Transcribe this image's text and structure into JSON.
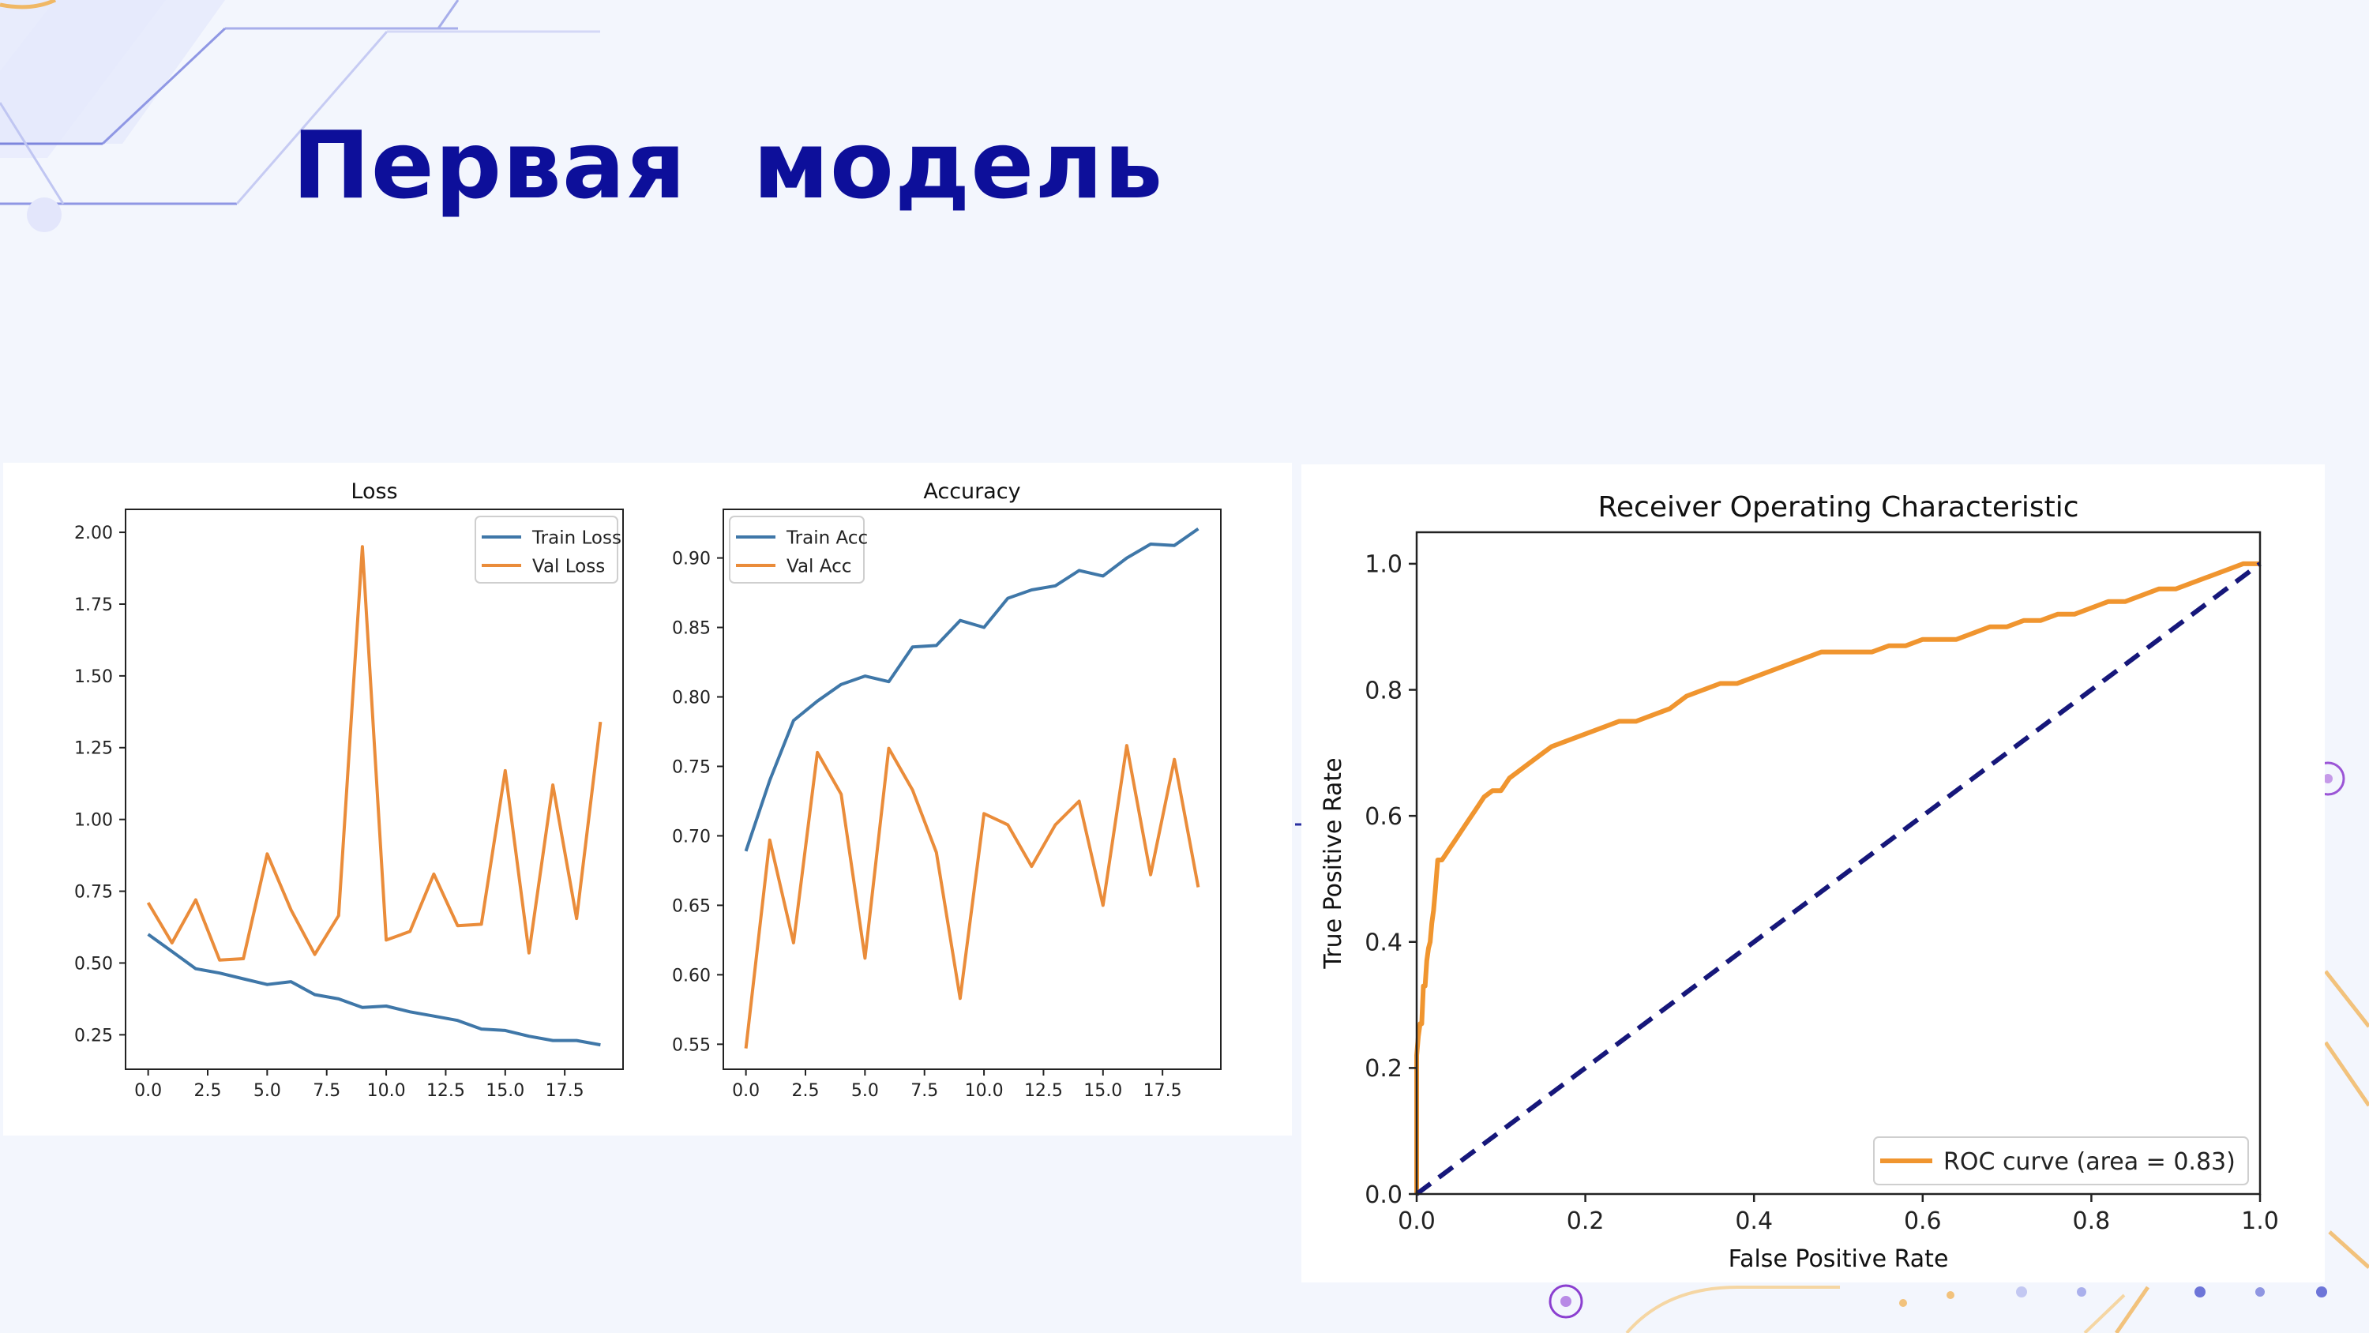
{
  "slide": {
    "title": "Первая  модель"
  },
  "colors": {
    "title": "#0d0f9a",
    "train": "#3f77a8",
    "val": "#ea8c3a",
    "roc": "#f0952f",
    "diag": "#16177a"
  },
  "chart_data": [
    {
      "type": "line",
      "title": "Loss",
      "xlabel": "",
      "ylabel": "",
      "xlim": [
        -0.95,
        19.95
      ],
      "ylim": [
        0.13,
        2.08
      ],
      "xticks": [
        0.0,
        2.5,
        5.0,
        7.5,
        10.0,
        12.5,
        15.0,
        17.5
      ],
      "xtick_labels": [
        "0.0",
        "2.5",
        "5.0",
        "7.5",
        "10.0",
        "12.5",
        "15.0",
        "17.5"
      ],
      "yticks": [
        0.25,
        0.5,
        0.75,
        1.0,
        1.25,
        1.5,
        1.75,
        2.0
      ],
      "ytick_labels": [
        "0.25",
        "0.50",
        "0.75",
        "1.00",
        "1.25",
        "1.50",
        "1.75",
        "2.00"
      ],
      "legend": "upper-right",
      "grid": false,
      "x": [
        0,
        1,
        2,
        3,
        4,
        5,
        6,
        7,
        8,
        9,
        10,
        11,
        12,
        13,
        14,
        15,
        16,
        17,
        18,
        19
      ],
      "series": [
        {
          "name": "Train Loss",
          "color": "#3f77a8",
          "values": [
            0.6,
            0.54,
            0.48,
            0.465,
            0.445,
            0.425,
            0.435,
            0.39,
            0.375,
            0.345,
            0.35,
            0.33,
            0.315,
            0.3,
            0.27,
            0.265,
            0.245,
            0.23,
            0.23,
            0.215
          ]
        },
        {
          "name": "Val Loss",
          "color": "#ea8c3a",
          "values": [
            0.71,
            0.57,
            0.72,
            0.51,
            0.515,
            0.88,
            0.685,
            0.53,
            0.665,
            1.95,
            0.58,
            0.61,
            0.81,
            0.63,
            0.635,
            1.17,
            0.535,
            1.12,
            0.655,
            1.34
          ]
        }
      ]
    },
    {
      "type": "line",
      "title": "Accuracy",
      "xlabel": "",
      "ylabel": "",
      "xlim": [
        -0.95,
        19.95
      ],
      "ylim": [
        0.532,
        0.935
      ],
      "xticks": [
        0.0,
        2.5,
        5.0,
        7.5,
        10.0,
        12.5,
        15.0,
        17.5
      ],
      "xtick_labels": [
        "0.0",
        "2.5",
        "5.0",
        "7.5",
        "10.0",
        "12.5",
        "15.0",
        "17.5"
      ],
      "yticks": [
        0.55,
        0.6,
        0.65,
        0.7,
        0.75,
        0.8,
        0.85,
        0.9
      ],
      "ytick_labels": [
        "0.55",
        "0.60",
        "0.65",
        "0.70",
        "0.75",
        "0.80",
        "0.85",
        "0.90"
      ],
      "legend": "upper-left",
      "grid": false,
      "x": [
        0,
        1,
        2,
        3,
        4,
        5,
        6,
        7,
        8,
        9,
        10,
        11,
        12,
        13,
        14,
        15,
        16,
        17,
        18,
        19
      ],
      "series": [
        {
          "name": "Train Acc",
          "color": "#3f77a8",
          "values": [
            0.689,
            0.74,
            0.783,
            0.797,
            0.809,
            0.815,
            0.811,
            0.836,
            0.837,
            0.855,
            0.85,
            0.871,
            0.877,
            0.88,
            0.891,
            0.887,
            0.9,
            0.91,
            0.909,
            0.921
          ]
        },
        {
          "name": "Val Acc",
          "color": "#ea8c3a",
          "values": [
            0.547,
            0.697,
            0.623,
            0.76,
            0.73,
            0.612,
            0.763,
            0.733,
            0.688,
            0.583,
            0.716,
            0.708,
            0.678,
            0.708,
            0.725,
            0.65,
            0.765,
            0.672,
            0.755,
            0.663
          ]
        }
      ]
    },
    {
      "type": "line",
      "title": "Receiver Operating Characteristic",
      "xlabel": "False Positive Rate",
      "ylabel": "True Positive Rate",
      "xlim": [
        0.0,
        1.0
      ],
      "ylim": [
        0.0,
        1.05
      ],
      "xticks": [
        0.0,
        0.2,
        0.4,
        0.6,
        0.8,
        1.0
      ],
      "xtick_labels": [
        "0.0",
        "0.2",
        "0.4",
        "0.6",
        "0.8",
        "1.0"
      ],
      "yticks": [
        0.0,
        0.2,
        0.4,
        0.6,
        0.8,
        1.0
      ],
      "ytick_labels": [
        "0.0",
        "0.2",
        "0.4",
        "0.6",
        "0.8",
        "1.0"
      ],
      "legend": "lower-right",
      "grid": false,
      "series": [
        {
          "name": "ROC curve (area = 0.83)",
          "color": "#f0952f",
          "style": "solid",
          "x": [
            0.0,
            0.0,
            0.002,
            0.004,
            0.006,
            0.008,
            0.01,
            0.012,
            0.014,
            0.016,
            0.018,
            0.02,
            0.022,
            0.025,
            0.03,
            0.035,
            0.04,
            0.045,
            0.05,
            0.055,
            0.06,
            0.07,
            0.08,
            0.09,
            0.1,
            0.11,
            0.12,
            0.13,
            0.14,
            0.15,
            0.16,
            0.18,
            0.2,
            0.22,
            0.24,
            0.26,
            0.28,
            0.3,
            0.32,
            0.34,
            0.36,
            0.38,
            0.4,
            0.42,
            0.44,
            0.46,
            0.48,
            0.5,
            0.52,
            0.54,
            0.56,
            0.58,
            0.6,
            0.62,
            0.64,
            0.66,
            0.68,
            0.7,
            0.72,
            0.74,
            0.76,
            0.78,
            0.8,
            0.82,
            0.84,
            0.86,
            0.88,
            0.9,
            0.92,
            0.94,
            0.96,
            0.98,
            1.0
          ],
          "y": [
            0.0,
            0.22,
            0.25,
            0.27,
            0.27,
            0.33,
            0.33,
            0.37,
            0.39,
            0.4,
            0.43,
            0.45,
            0.48,
            0.53,
            0.53,
            0.54,
            0.55,
            0.56,
            0.57,
            0.58,
            0.59,
            0.61,
            0.63,
            0.64,
            0.64,
            0.66,
            0.67,
            0.68,
            0.69,
            0.7,
            0.71,
            0.72,
            0.73,
            0.74,
            0.75,
            0.75,
            0.76,
            0.77,
            0.79,
            0.8,
            0.81,
            0.81,
            0.82,
            0.83,
            0.84,
            0.85,
            0.86,
            0.86,
            0.86,
            0.86,
            0.87,
            0.87,
            0.88,
            0.88,
            0.88,
            0.89,
            0.9,
            0.9,
            0.91,
            0.91,
            0.92,
            0.92,
            0.93,
            0.94,
            0.94,
            0.95,
            0.96,
            0.96,
            0.97,
            0.98,
            0.99,
            1.0,
            1.0
          ]
        },
        {
          "name": "",
          "color": "#16177a",
          "style": "dashed",
          "x": [
            0.0,
            1.0
          ],
          "y": [
            0.0,
            1.0
          ]
        }
      ]
    }
  ]
}
